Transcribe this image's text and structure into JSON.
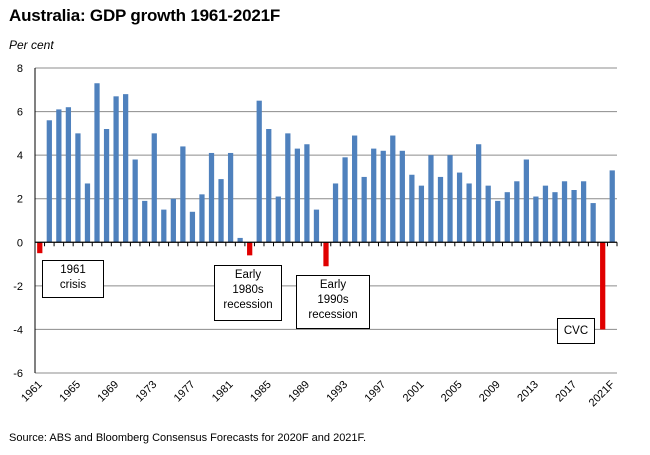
{
  "chart_data": {
    "type": "bar",
    "title": "Australia: GDP growth 1961-2021F",
    "ylabel": "Per cent",
    "xlabel": "",
    "ylim": [
      -6,
      8
    ],
    "yticks": [
      -6,
      -4,
      -2,
      0,
      2,
      4,
      6,
      8
    ],
    "grid": true,
    "categories": [
      "1961",
      "1962",
      "1963",
      "1964",
      "1965",
      "1966",
      "1967",
      "1968",
      "1969",
      "1970",
      "1971",
      "1972",
      "1973",
      "1974",
      "1975",
      "1976",
      "1977",
      "1978",
      "1979",
      "1980",
      "1981",
      "1982",
      "1983",
      "1984",
      "1985",
      "1986",
      "1987",
      "1988",
      "1989",
      "1990",
      "1991",
      "1992",
      "1993",
      "1994",
      "1995",
      "1996",
      "1997",
      "1998",
      "1999",
      "2000",
      "2001",
      "2002",
      "2003",
      "2004",
      "2005",
      "2006",
      "2007",
      "2008",
      "2009",
      "2010",
      "2011",
      "2012",
      "2013",
      "2014",
      "2015",
      "2016",
      "2017",
      "2018",
      "2019",
      "2020F",
      "2021F"
    ],
    "tick_labels": [
      "1961",
      "1965",
      "1969",
      "1973",
      "1977",
      "1981",
      "1985",
      "1989",
      "1993",
      "1997",
      "2001",
      "2005",
      "2009",
      "2013",
      "2017",
      "2021F"
    ],
    "values": [
      -0.5,
      5.6,
      6.1,
      6.2,
      5.0,
      2.7,
      7.3,
      5.2,
      6.7,
      6.8,
      3.8,
      1.9,
      5.0,
      1.5,
      2.0,
      4.4,
      1.4,
      2.2,
      4.1,
      2.9,
      4.1,
      0.2,
      -0.6,
      6.5,
      5.2,
      2.1,
      5.0,
      4.3,
      4.5,
      1.5,
      -1.1,
      2.7,
      3.9,
      4.9,
      3.0,
      4.3,
      4.2,
      4.9,
      4.2,
      3.1,
      2.6,
      4.0,
      3.0,
      4.0,
      3.2,
      2.7,
      4.5,
      2.6,
      1.9,
      2.3,
      2.8,
      3.8,
      2.1,
      2.6,
      2.3,
      2.8,
      2.4,
      2.8,
      1.8,
      -4.0,
      3.3
    ],
    "positive_color": "#4f81bd",
    "negative_color": "#e00000",
    "annotations": [
      {
        "label_lines": [
          "1961",
          "crisis"
        ]
      },
      {
        "label_lines": [
          "Early",
          "1980s",
          "recession"
        ]
      },
      {
        "label_lines": [
          "Early",
          "1990s",
          "recession"
        ]
      },
      {
        "label_lines": [
          "CVC"
        ]
      }
    ],
    "source": "Source:  ABS and Bloomberg Consensus Forecasts for 2020F and 2021F."
  }
}
